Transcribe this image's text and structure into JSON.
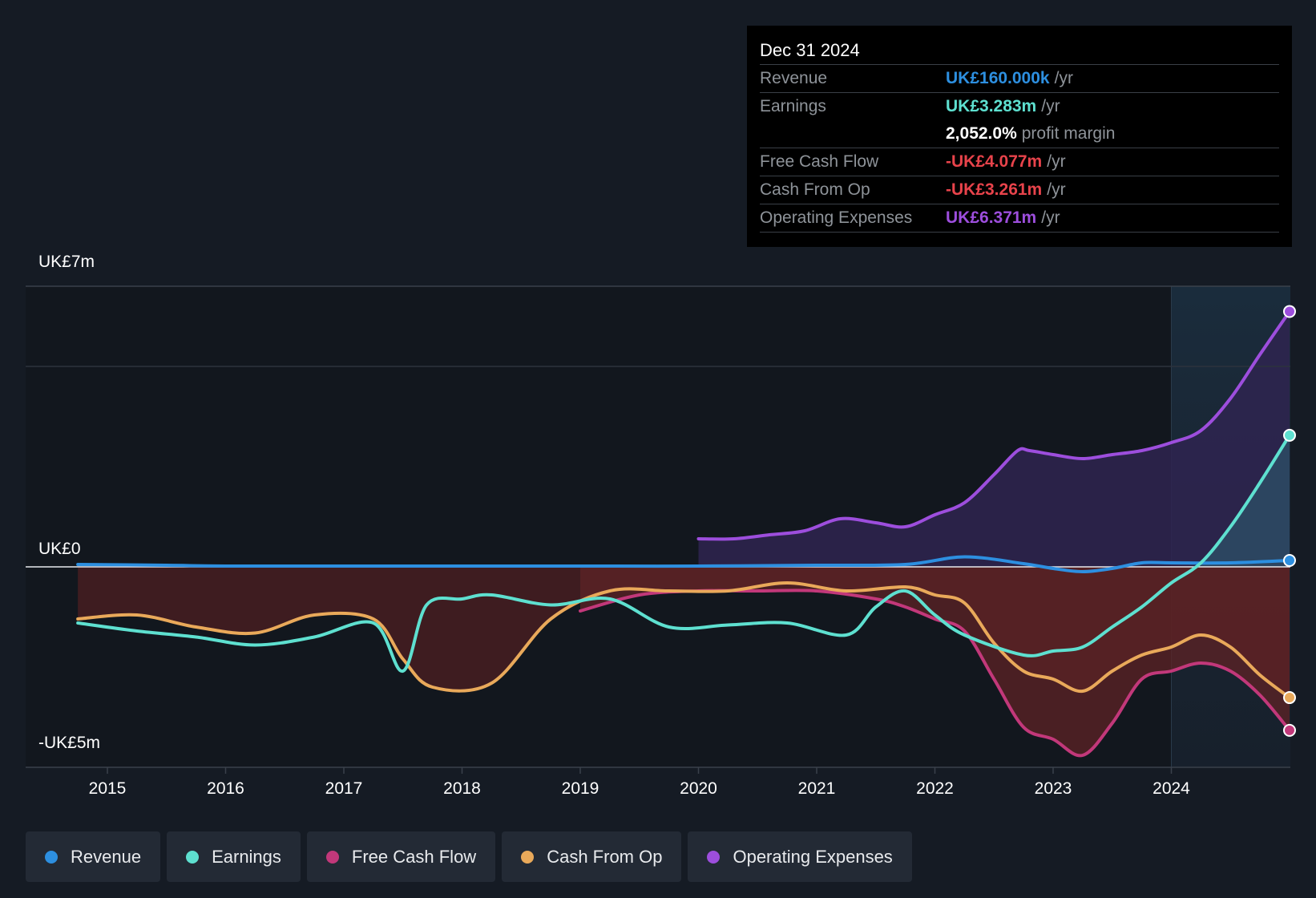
{
  "chart_data": {
    "type": "line",
    "title": "",
    "y_labels": {
      "top": "UK£7m",
      "zero": "UK£0",
      "bottom": "-UK£5m"
    },
    "ylim": [
      -5.0,
      7.0
    ],
    "xlim": [
      2014.7,
      2025.0
    ],
    "x_ticks": [
      "2015",
      "2016",
      "2017",
      "2018",
      "2019",
      "2020",
      "2021",
      "2022",
      "2023",
      "2024"
    ],
    "x_tick_values": [
      2015,
      2016,
      2017,
      2018,
      2019,
      2020,
      2021,
      2022,
      2023,
      2024
    ],
    "forecast_start": 2024.0,
    "series": [
      {
        "name": "Operating Expenses",
        "key": "opex",
        "color": "#9d4edd",
        "fill": "#2f2550",
        "x": [
          2020.0,
          2020.3,
          2020.6,
          2020.9,
          2021.2,
          2021.5,
          2021.75,
          2022.0,
          2022.25,
          2022.5,
          2022.7,
          2022.8,
          2023.0,
          2023.25,
          2023.5,
          2023.75,
          2024.0,
          2024.25,
          2024.5,
          2024.75,
          2025.0
        ],
        "values": [
          0.7,
          0.7,
          0.8,
          0.9,
          1.2,
          1.1,
          1.0,
          1.3,
          1.6,
          2.3,
          2.9,
          2.9,
          2.8,
          2.7,
          2.8,
          2.9,
          3.1,
          3.4,
          4.2,
          5.3,
          6.371
        ]
      },
      {
        "name": "Revenue",
        "key": "revenue",
        "color": "#2d8fe0",
        "x": [
          2014.75,
          2015.5,
          2016.0,
          2017.0,
          2018.0,
          2019.0,
          2020.0,
          2021.0,
          2021.75,
          2022.25,
          2022.75,
          2023.0,
          2023.25,
          2023.5,
          2023.75,
          2024.0,
          2024.5,
          2025.0
        ],
        "values": [
          0.06,
          0.04,
          0.02,
          0.02,
          0.02,
          0.02,
          0.02,
          0.04,
          0.06,
          0.25,
          0.08,
          -0.04,
          -0.12,
          -0.04,
          0.1,
          0.1,
          0.1,
          0.16
        ]
      },
      {
        "name": "Earnings",
        "key": "earnings",
        "color": "#5ee0d0",
        "x": [
          2014.75,
          2015.25,
          2015.75,
          2016.25,
          2016.75,
          2017.25,
          2017.5,
          2017.7,
          2018.0,
          2018.25,
          2018.75,
          2019.25,
          2019.75,
          2020.25,
          2020.75,
          2021.25,
          2021.5,
          2021.75,
          2022.0,
          2022.25,
          2022.75,
          2023.0,
          2023.25,
          2023.5,
          2023.75,
          2024.0,
          2024.25,
          2024.5,
          2024.75,
          2025.0
        ],
        "values": [
          -1.4,
          -1.6,
          -1.75,
          -1.95,
          -1.75,
          -1.4,
          -2.6,
          -0.95,
          -0.8,
          -0.7,
          -0.95,
          -0.8,
          -1.5,
          -1.45,
          -1.4,
          -1.7,
          -1.0,
          -0.6,
          -1.2,
          -1.7,
          -2.2,
          -2.1,
          -2.0,
          -1.5,
          -1.0,
          -0.4,
          0.1,
          1.0,
          2.1,
          3.283
        ]
      },
      {
        "name": "Free Cash Flow",
        "key": "fcf",
        "color": "#c2387a",
        "fill": "#5e2326",
        "x": [
          2019.0,
          2019.5,
          2020.0,
          2020.5,
          2021.0,
          2021.5,
          2021.75,
          2022.0,
          2022.25,
          2022.5,
          2022.75,
          2023.0,
          2023.25,
          2023.5,
          2023.75,
          2024.0,
          2024.25,
          2024.5,
          2024.75,
          2025.0
        ],
        "values": [
          -1.1,
          -0.7,
          -0.6,
          -0.6,
          -0.6,
          -0.8,
          -1.0,
          -1.3,
          -1.6,
          -2.8,
          -4.0,
          -4.3,
          -4.7,
          -3.9,
          -2.8,
          -2.6,
          -2.4,
          -2.6,
          -3.2,
          -4.077
        ]
      },
      {
        "name": "Cash From Op",
        "key": "cfo",
        "color": "#e9a95a",
        "fill": "#4d1f22",
        "x": [
          2014.75,
          2015.25,
          2015.75,
          2016.25,
          2016.75,
          2017.25,
          2017.5,
          2017.75,
          2018.25,
          2018.75,
          2019.25,
          2019.75,
          2020.25,
          2020.75,
          2021.25,
          2021.75,
          2022.0,
          2022.25,
          2022.5,
          2022.75,
          2023.0,
          2023.25,
          2023.5,
          2023.75,
          2024.0,
          2024.25,
          2024.5,
          2024.75,
          2025.0
        ],
        "values": [
          -1.3,
          -1.2,
          -1.5,
          -1.65,
          -1.2,
          -1.3,
          -2.3,
          -3.0,
          -2.9,
          -1.3,
          -0.6,
          -0.6,
          -0.6,
          -0.4,
          -0.6,
          -0.5,
          -0.7,
          -0.9,
          -1.9,
          -2.6,
          -2.8,
          -3.1,
          -2.6,
          -2.2,
          -2.0,
          -1.7,
          -2.0,
          -2.7,
          -3.261
        ]
      }
    ]
  },
  "tooltip": {
    "date": "Dec 31 2024",
    "rows": [
      {
        "label": "Revenue",
        "value": "UK£160.000k",
        "unit": "/yr",
        "color": "#2d8fe0"
      },
      {
        "label": "Earnings",
        "value": "UK£3.283m",
        "unit": "/yr",
        "color": "#5ee0d0"
      },
      {
        "label": "",
        "value": "2,052.0%",
        "unit": "profit margin",
        "color": "#ffffff"
      },
      {
        "label": "Free Cash Flow",
        "value": "-UK£4.077m",
        "unit": "/yr",
        "color": "#e8434b"
      },
      {
        "label": "Cash From Op",
        "value": "-UK£3.261m",
        "unit": "/yr",
        "color": "#e8434b"
      },
      {
        "label": "Operating Expenses",
        "value": "UK£6.371m",
        "unit": "/yr",
        "color": "#9d4edd"
      }
    ]
  },
  "legend": [
    {
      "label": "Revenue",
      "color": "#2d8fe0"
    },
    {
      "label": "Earnings",
      "color": "#5ee0d0"
    },
    {
      "label": "Free Cash Flow",
      "color": "#c2387a"
    },
    {
      "label": "Cash From Op",
      "color": "#e9a95a"
    },
    {
      "label": "Operating Expenses",
      "color": "#9d4edd"
    }
  ]
}
